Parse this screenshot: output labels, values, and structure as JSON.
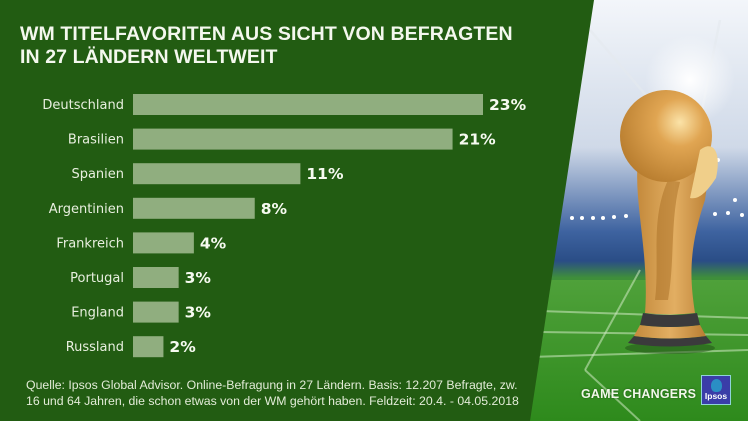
{
  "title": {
    "line1": "WM TITELFAVORITEN AUS SICHT VON BEFRAGTEN",
    "line2": "IN 27 LÄNDERN WELTWEIT"
  },
  "chart_data": {
    "type": "bar",
    "orientation": "horizontal",
    "title": "WM TITELFAVORITEN AUS SICHT VON BEFRAGTEN IN 27 LÄNDERN WELTWEIT",
    "xlabel": "",
    "ylabel": "",
    "categories": [
      "Deutschland",
      "Brasilien",
      "Spanien",
      "Argentinien",
      "Frankreich",
      "Portugal",
      "England",
      "Russland"
    ],
    "values": [
      23,
      21,
      11,
      8,
      4,
      3,
      3,
      2
    ],
    "value_labels": [
      "23%",
      "21%",
      "11%",
      "8%",
      "4%",
      "3%",
      "3%",
      "2%"
    ],
    "unit": "%",
    "xlim": [
      0,
      23
    ],
    "grid": false,
    "legend": "none",
    "bar_color": "#90ae7f"
  },
  "footnote": {
    "line1": "Quelle: Ipsos Global Advisor. Online-Befragung in 27 Ländern. Basis: 12.207 Befragte, zw.",
    "line2": "16 und 64 Jahren, die schon etwas von der WM gehört haben. Feldzeit: 20.4. - 04.05.2018"
  },
  "branding": {
    "tagline": "GAME CHANGERS",
    "logo_text": "Ipsos"
  },
  "colors": {
    "background": "#225c12",
    "bar": "#90ae7f",
    "text": "#f4f8ee",
    "logo": "#3a3da8"
  },
  "image": {
    "description": "FIFA World Cup trophy in a floodlit football stadium",
    "icon": "trophy-icon"
  }
}
